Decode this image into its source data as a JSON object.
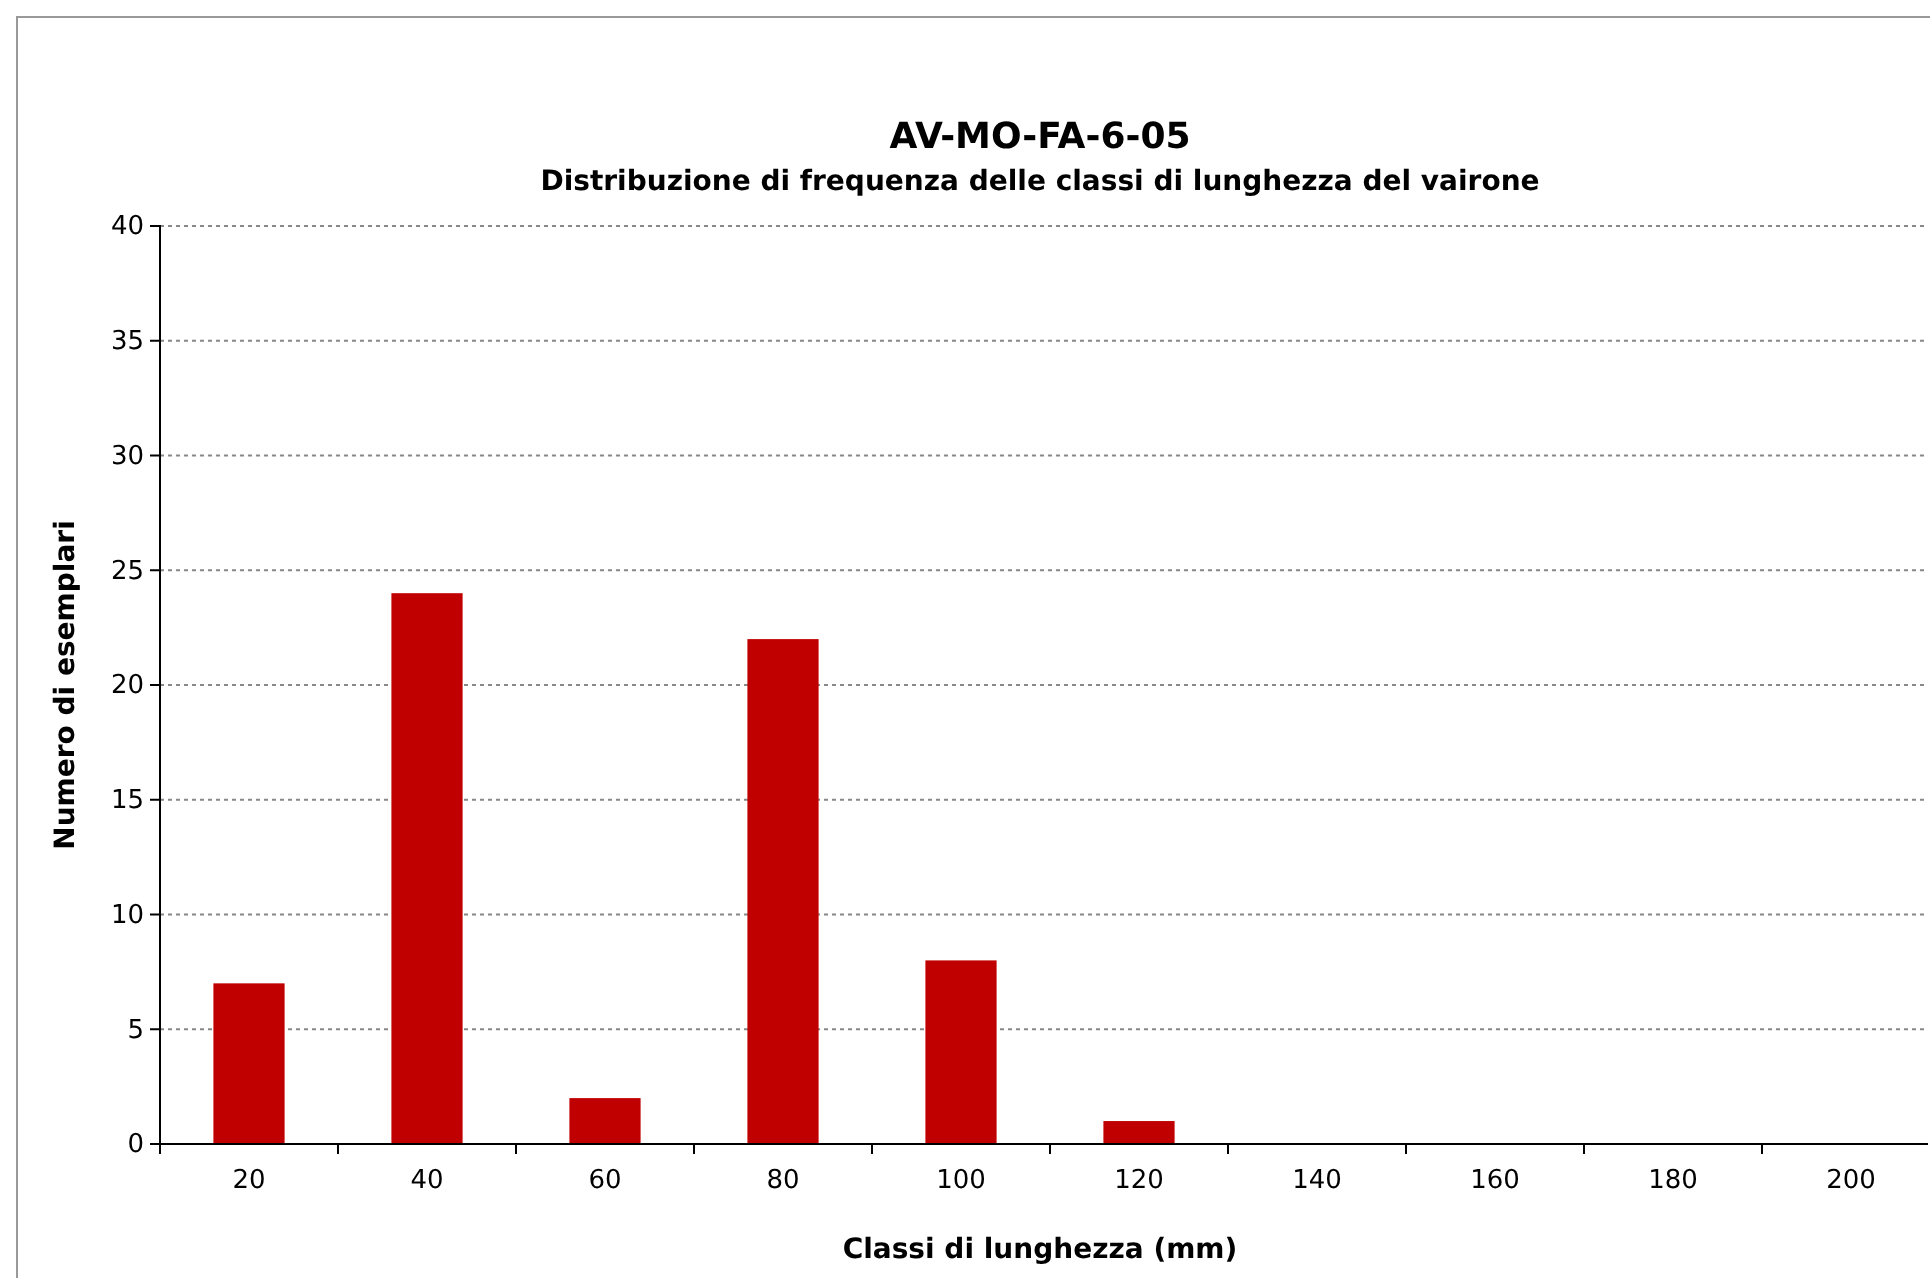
{
  "chart_data": {
    "type": "bar",
    "title": "AV-MO-FA-6-05",
    "subtitle": "Distribuzione di frequenza delle classi di lunghezza del vairone",
    "xlabel": "Classi di lunghezza (mm)",
    "ylabel": "Numero di esemplari",
    "categories": [
      "20",
      "40",
      "60",
      "80",
      "100",
      "120",
      "140",
      "160",
      "180",
      "200"
    ],
    "values": [
      7,
      24,
      2,
      22,
      8,
      1,
      0,
      0,
      0,
      0
    ],
    "color": "#c00000",
    "ylim": [
      0,
      40
    ],
    "yticks": [
      0,
      5,
      10,
      15,
      20,
      25,
      30,
      35,
      40
    ],
    "grid": "y"
  }
}
